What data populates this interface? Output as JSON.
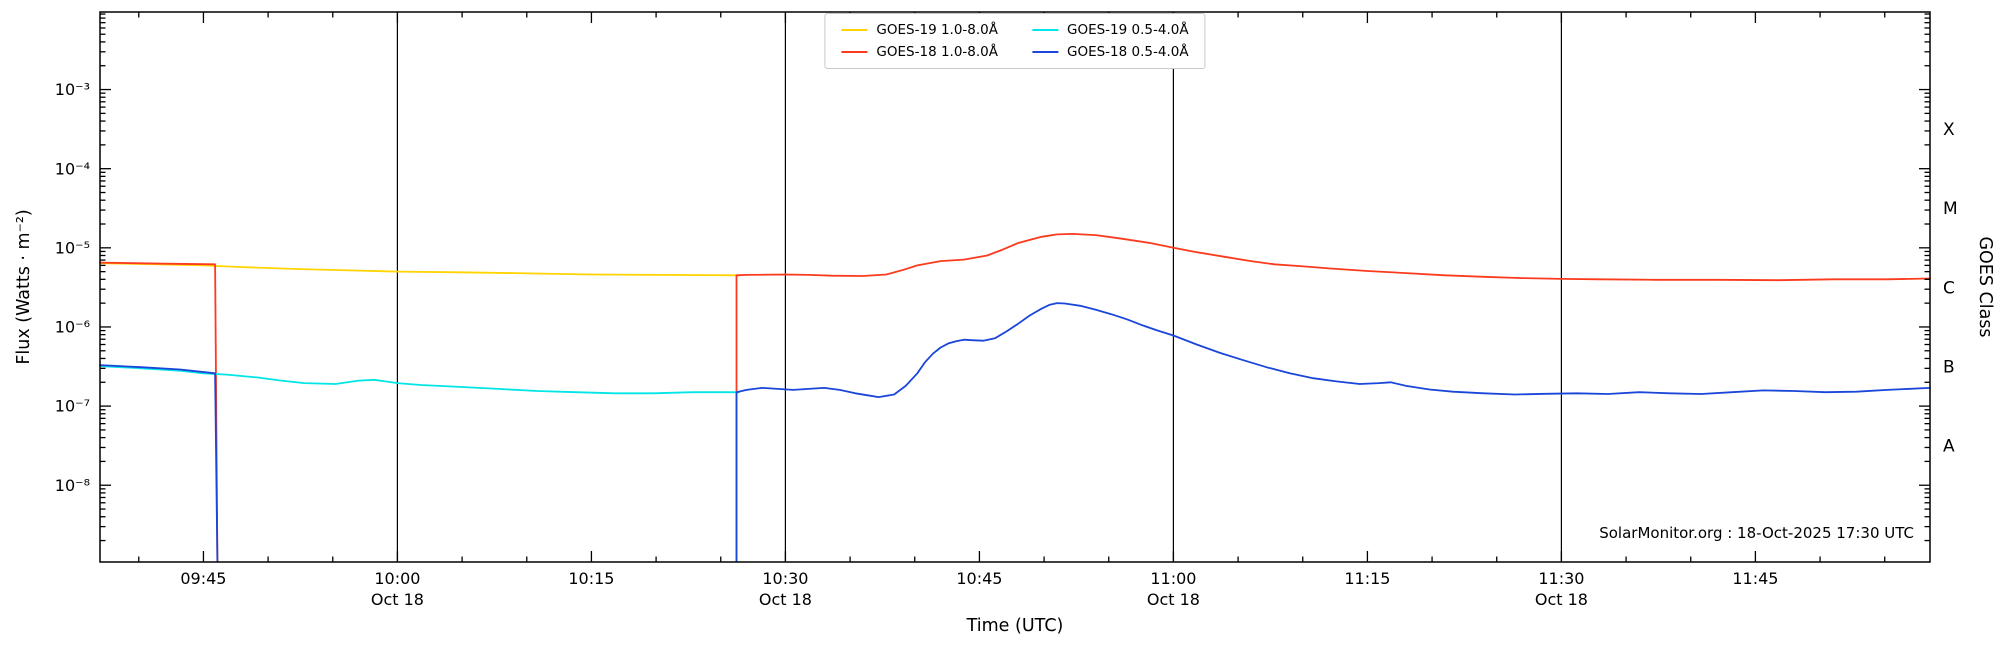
{
  "chart_data": {
    "type": "line",
    "title": "",
    "xlabel": "Time (UTC)",
    "ylabel": "Flux (Watts · m⁻²)",
    "ylabel_right": "GOES Class",
    "watermark": "SolarMonitor.org : 18-Oct-2025 17:30 UTC",
    "x_range_hours": [
      9.6167,
      11.975
    ],
    "ylim_log10": [
      -8.97,
      -2.02
    ],
    "x_minor_step_minutes": 5,
    "x_major_ticks": [
      {
        "hour": 9.75,
        "label": "09:45",
        "date": ""
      },
      {
        "hour": 10.0,
        "label": "10:00",
        "date": "Oct 18"
      },
      {
        "hour": 10.25,
        "label": "10:15",
        "date": ""
      },
      {
        "hour": 10.5,
        "label": "10:30",
        "date": "Oct 18"
      },
      {
        "hour": 10.75,
        "label": "10:45",
        "date": ""
      },
      {
        "hour": 11.0,
        "label": "11:00",
        "date": "Oct 18"
      },
      {
        "hour": 11.25,
        "label": "11:15",
        "date": ""
      },
      {
        "hour": 11.5,
        "label": "11:30",
        "date": "Oct 18"
      },
      {
        "hour": 11.75,
        "label": "11:45",
        "date": ""
      }
    ],
    "y_major_ticks": [
      {
        "log10": -3,
        "label": "10⁻³"
      },
      {
        "log10": -4,
        "label": "10⁻⁴"
      },
      {
        "log10": -5,
        "label": "10⁻⁵"
      },
      {
        "log10": -6,
        "label": "10⁻⁶"
      },
      {
        "log10": -7,
        "label": "10⁻⁷"
      },
      {
        "log10": -8,
        "label": "10⁻⁸"
      }
    ],
    "goes_class_labels": [
      {
        "label": "X",
        "log10": -3.5
      },
      {
        "label": "M",
        "log10": -4.5
      },
      {
        "label": "C",
        "log10": -5.5
      },
      {
        "label": "B",
        "log10": -6.5
      },
      {
        "label": "A",
        "log10": -7.5
      }
    ],
    "vertical_lines_hours": [
      10.0,
      10.5,
      11.0,
      11.5
    ],
    "frame_color": "#000000",
    "series": [
      {
        "name": "GOES-19 1.0-8.0Å",
        "color": "#ffd400",
        "segments": [
          [
            [
              9.6167,
              6.4e-06
            ],
            [
              9.7,
              6.15e-06
            ],
            [
              9.75,
              6e-06
            ],
            [
              9.8,
              5.7e-06
            ],
            [
              9.87,
              5.4e-06
            ],
            [
              9.95,
              5.15e-06
            ],
            [
              10.0,
              5e-06
            ],
            [
              10.08,
              4.9e-06
            ],
            [
              10.17,
              4.75e-06
            ],
            [
              10.25,
              4.6e-06
            ],
            [
              10.33,
              4.55e-06
            ],
            [
              10.44,
              4.5e-06
            ]
          ]
        ]
      },
      {
        "name": "GOES-18 1.0-8.0Å",
        "color": "#fb3b1e",
        "segments": [
          [
            [
              9.6167,
              6.5e-06
            ],
            [
              9.7,
              6.3e-06
            ],
            [
              9.765,
              6.2e-06
            ],
            [
              9.768,
              1.1e-09
            ]
          ],
          [
            [
              10.437,
              1.1e-09
            ],
            [
              10.437,
              4.5e-06
            ],
            [
              10.45,
              4.55e-06
            ],
            [
              10.5,
              4.6e-06
            ],
            [
              10.53,
              4.55e-06
            ],
            [
              10.56,
              4.45e-06
            ],
            [
              10.6,
              4.4e-06
            ],
            [
              10.63,
              4.6e-06
            ],
            [
              10.65,
              5.2e-06
            ],
            [
              10.67,
              6e-06
            ],
            [
              10.7,
              6.8e-06
            ],
            [
              10.73,
              7.1e-06
            ],
            [
              10.76,
              8e-06
            ],
            [
              10.78,
              9.5e-06
            ],
            [
              10.8,
              1.15e-05
            ],
            [
              10.83,
              1.38e-05
            ],
            [
              10.85,
              1.48e-05
            ],
            [
              10.87,
              1.5e-05
            ],
            [
              10.9,
              1.45e-05
            ],
            [
              10.93,
              1.32e-05
            ],
            [
              10.97,
              1.15e-05
            ],
            [
              11.0,
              1e-05
            ],
            [
              11.03,
              8.8e-06
            ],
            [
              11.07,
              7.6e-06
            ],
            [
              11.1,
              6.8e-06
            ],
            [
              11.13,
              6.2e-06
            ],
            [
              11.17,
              5.8e-06
            ],
            [
              11.2,
              5.5e-06
            ],
            [
              11.25,
              5.1e-06
            ],
            [
              11.3,
              4.8e-06
            ],
            [
              11.35,
              4.5e-06
            ],
            [
              11.4,
              4.3e-06
            ],
            [
              11.45,
              4.15e-06
            ],
            [
              11.5,
              4.05e-06
            ],
            [
              11.55,
              4e-06
            ],
            [
              11.62,
              3.95e-06
            ],
            [
              11.7,
              3.95e-06
            ],
            [
              11.78,
              3.9e-06
            ],
            [
              11.85,
              4e-06
            ],
            [
              11.92,
              4e-06
            ],
            [
              11.975,
              4.1e-06
            ]
          ]
        ]
      },
      {
        "name": "GOES-19 0.5-4.0Å",
        "color": "#00e6e6",
        "segments": [
          [
            [
              9.6167,
              3.2e-07
            ],
            [
              9.67,
              3e-07
            ],
            [
              9.72,
              2.8e-07
            ],
            [
              9.75,
              2.6e-07
            ],
            [
              9.78,
              2.5e-07
            ],
            [
              9.82,
              2.3e-07
            ],
            [
              9.85,
              2.1e-07
            ],
            [
              9.88,
              1.95e-07
            ],
            [
              9.92,
              1.9e-07
            ],
            [
              9.95,
              2.1e-07
            ],
            [
              9.97,
              2.15e-07
            ],
            [
              10.0,
              1.95e-07
            ],
            [
              10.03,
              1.85e-07
            ],
            [
              10.08,
              1.75e-07
            ],
            [
              10.13,
              1.65e-07
            ],
            [
              10.18,
              1.55e-07
            ],
            [
              10.23,
              1.5e-07
            ],
            [
              10.28,
              1.45e-07
            ],
            [
              10.33,
              1.45e-07
            ],
            [
              10.38,
              1.5e-07
            ],
            [
              10.44,
              1.5e-07
            ]
          ]
        ]
      },
      {
        "name": "GOES-18 0.5-4.0Å",
        "color": "#1a46d9",
        "segments": [
          [
            [
              9.6167,
              3.3e-07
            ],
            [
              9.67,
              3.1e-07
            ],
            [
              9.72,
              2.9e-07
            ],
            [
              9.765,
              2.6e-07
            ],
            [
              9.768,
              1.1e-09
            ]
          ],
          [
            [
              10.437,
              1.1e-09
            ],
            [
              10.437,
              1.5e-07
            ],
            [
              10.45,
              1.6e-07
            ],
            [
              10.47,
              1.7e-07
            ],
            [
              10.49,
              1.65e-07
            ],
            [
              10.51,
              1.6e-07
            ],
            [
              10.53,
              1.65e-07
            ],
            [
              10.55,
              1.7e-07
            ],
            [
              10.57,
              1.6e-07
            ],
            [
              10.59,
              1.45e-07
            ],
            [
              10.61,
              1.35e-07
            ],
            [
              10.62,
              1.3e-07
            ],
            [
              10.64,
              1.4e-07
            ],
            [
              10.655,
              1.8e-07
            ],
            [
              10.67,
              2.6e-07
            ],
            [
              10.68,
              3.6e-07
            ],
            [
              10.69,
              4.6e-07
            ],
            [
              10.7,
              5.5e-07
            ],
            [
              10.71,
              6.2e-07
            ],
            [
              10.72,
              6.6e-07
            ],
            [
              10.73,
              6.9e-07
            ],
            [
              10.74,
              6.8e-07
            ],
            [
              10.755,
              6.7e-07
            ],
            [
              10.77,
              7.2e-07
            ],
            [
              10.785,
              8.8e-07
            ],
            [
              10.8,
              1.1e-06
            ],
            [
              10.815,
              1.4e-06
            ],
            [
              10.83,
              1.7e-06
            ],
            [
              10.84,
              1.9e-06
            ],
            [
              10.85,
              2e-06
            ],
            [
              10.86,
              1.98e-06
            ],
            [
              10.88,
              1.85e-06
            ],
            [
              10.9,
              1.65e-06
            ],
            [
              10.92,
              1.45e-06
            ],
            [
              10.94,
              1.25e-06
            ],
            [
              10.96,
              1.05e-06
            ],
            [
              10.98,
              9e-07
            ],
            [
              11.0,
              7.8e-07
            ],
            [
              11.03,
              6e-07
            ],
            [
              11.06,
              4.7e-07
            ],
            [
              11.09,
              3.8e-07
            ],
            [
              11.12,
              3.1e-07
            ],
            [
              11.15,
              2.6e-07
            ],
            [
              11.18,
              2.25e-07
            ],
            [
              11.21,
              2.05e-07
            ],
            [
              11.24,
              1.9e-07
            ],
            [
              11.265,
              1.95e-07
            ],
            [
              11.28,
              2e-07
            ],
            [
              11.3,
              1.8e-07
            ],
            [
              11.33,
              1.62e-07
            ],
            [
              11.36,
              1.52e-07
            ],
            [
              11.4,
              1.45e-07
            ],
            [
              11.44,
              1.4e-07
            ],
            [
              11.48,
              1.43e-07
            ],
            [
              11.52,
              1.45e-07
            ],
            [
              11.56,
              1.42e-07
            ],
            [
              11.6,
              1.5e-07
            ],
            [
              11.64,
              1.45e-07
            ],
            [
              11.68,
              1.42e-07
            ],
            [
              11.72,
              1.5e-07
            ],
            [
              11.76,
              1.58e-07
            ],
            [
              11.8,
              1.55e-07
            ],
            [
              11.84,
              1.5e-07
            ],
            [
              11.88,
              1.52e-07
            ],
            [
              11.92,
              1.6e-07
            ],
            [
              11.975,
              1.7e-07
            ]
          ]
        ]
      }
    ]
  }
}
